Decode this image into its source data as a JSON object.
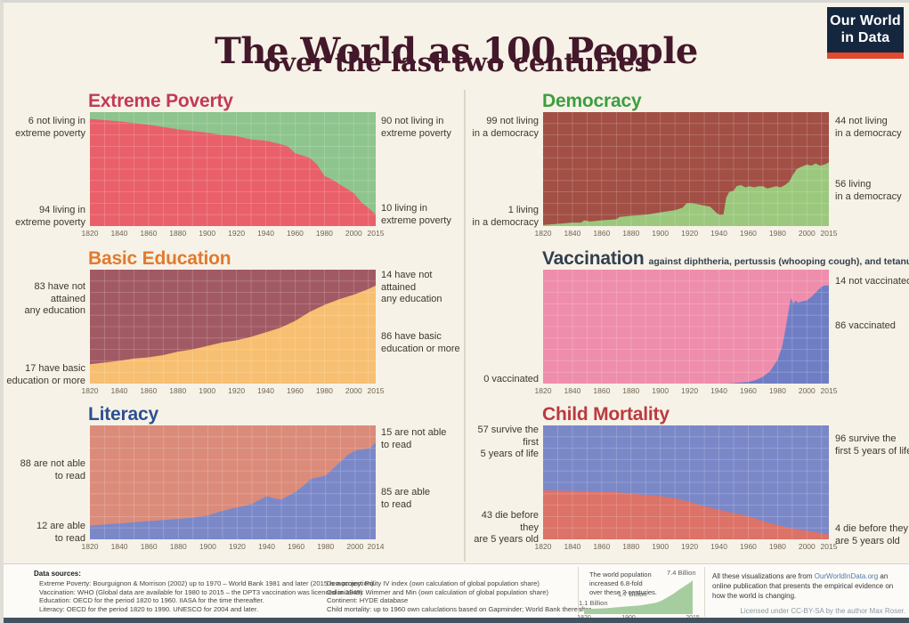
{
  "header": {
    "title": "The World as 100 People",
    "subtitle": "over the last two centuries",
    "logo": {
      "line1": "Our World",
      "line2": "in Data"
    }
  },
  "chart_data": [
    {
      "type": "area",
      "id": "extreme_poverty",
      "title": "Extreme Poverty",
      "subtitle": "",
      "title_color": "#c23a55",
      "bottom_color": "#e9606a",
      "top_color": "#8ec48e",
      "bottom_label": "living in extreme poverty",
      "top_label": "not living in extreme poverty",
      "labels": {
        "left_top": "6 not living in\nextreme poverty",
        "left_bottom": "94 living in\nextreme poverty",
        "right_top": "90 not living in\nextreme poverty",
        "right_bottom": "10 living in\nextreme poverty"
      },
      "x_range": [
        1820,
        2015
      ],
      "ylim": [
        0,
        100
      ],
      "x_ticks": [
        1820,
        1840,
        1860,
        1880,
        1900,
        1920,
        1940,
        1960,
        1980,
        2000,
        2015
      ],
      "points": [
        [
          1820,
          94
        ],
        [
          1840,
          92
        ],
        [
          1860,
          89
        ],
        [
          1880,
          85
        ],
        [
          1900,
          82
        ],
        [
          1910,
          80
        ],
        [
          1920,
          79
        ],
        [
          1930,
          76
        ],
        [
          1940,
          75
        ],
        [
          1950,
          72
        ],
        [
          1955,
          70
        ],
        [
          1960,
          64
        ],
        [
          1965,
          62
        ],
        [
          1970,
          60
        ],
        [
          1975,
          54
        ],
        [
          1980,
          44
        ],
        [
          1985,
          41
        ],
        [
          1990,
          37
        ],
        [
          1995,
          33
        ],
        [
          2000,
          29
        ],
        [
          2005,
          21
        ],
        [
          2010,
          16
        ],
        [
          2015,
          10
        ]
      ]
    },
    {
      "type": "area",
      "id": "democracy",
      "title": "Democracy",
      "subtitle": "",
      "title_color": "#3d9e40",
      "bottom_color": "#9bc87d",
      "top_color": "#a24f45",
      "bottom_label": "living in a democracy",
      "top_label": "not living in a democracy",
      "labels": {
        "left_top": "99 not living\nin a democracy",
        "left_bottom": "1 living\nin a democracy",
        "right_top": "44 not living\nin a democracy",
        "right_bottom": "56 living\nin a democracy"
      },
      "x_range": [
        1820,
        2015
      ],
      "ylim": [
        0,
        100
      ],
      "x_ticks": [
        1820,
        1840,
        1860,
        1880,
        1900,
        1920,
        1940,
        1960,
        1980,
        2000,
        2015
      ],
      "points": [
        [
          1820,
          1
        ],
        [
          1830,
          2
        ],
        [
          1840,
          3
        ],
        [
          1846,
          3
        ],
        [
          1848,
          5
        ],
        [
          1852,
          4
        ],
        [
          1860,
          5
        ],
        [
          1870,
          6
        ],
        [
          1872,
          8
        ],
        [
          1880,
          9
        ],
        [
          1890,
          10
        ],
        [
          1900,
          12
        ],
        [
          1910,
          14
        ],
        [
          1915,
          16
        ],
        [
          1918,
          20
        ],
        [
          1922,
          20
        ],
        [
          1926,
          19
        ],
        [
          1930,
          18
        ],
        [
          1934,
          17
        ],
        [
          1938,
          12
        ],
        [
          1940,
          10
        ],
        [
          1943,
          10
        ],
        [
          1945,
          25
        ],
        [
          1947,
          30
        ],
        [
          1950,
          31
        ],
        [
          1952,
          35
        ],
        [
          1955,
          36
        ],
        [
          1958,
          34
        ],
        [
          1961,
          35
        ],
        [
          1964,
          34
        ],
        [
          1967,
          35
        ],
        [
          1970,
          35
        ],
        [
          1973,
          33
        ],
        [
          1976,
          34
        ],
        [
          1979,
          35
        ],
        [
          1982,
          34
        ],
        [
          1985,
          36
        ],
        [
          1988,
          39
        ],
        [
          1990,
          44
        ],
        [
          1993,
          50
        ],
        [
          1996,
          52
        ],
        [
          2000,
          54
        ],
        [
          2003,
          53
        ],
        [
          2006,
          55
        ],
        [
          2009,
          53
        ],
        [
          2012,
          54
        ],
        [
          2015,
          56
        ]
      ]
    },
    {
      "type": "area",
      "id": "basic_education",
      "title": "Basic Education",
      "subtitle": "",
      "title_color": "#e17a2e",
      "bottom_color": "#f7bf71",
      "top_color": "#a15a63",
      "bottom_label": "have basic education or more",
      "top_label": "have not attained any education",
      "labels": {
        "left_top": "83 have not attained\nany education",
        "left_bottom": "17 have basic\neducation or more",
        "right_top": "14 have not attained\nany education",
        "right_bottom": "86 have basic\neducation or more"
      },
      "x_range": [
        1820,
        2015
      ],
      "ylim": [
        0,
        100
      ],
      "x_ticks": [
        1820,
        1840,
        1860,
        1880,
        1900,
        1920,
        1940,
        1960,
        1980,
        2000,
        2015
      ],
      "points": [
        [
          1820,
          17
        ],
        [
          1840,
          20
        ],
        [
          1850,
          22
        ],
        [
          1860,
          23
        ],
        [
          1870,
          25
        ],
        [
          1880,
          28
        ],
        [
          1890,
          30
        ],
        [
          1900,
          33
        ],
        [
          1910,
          36
        ],
        [
          1920,
          38
        ],
        [
          1930,
          41
        ],
        [
          1940,
          45
        ],
        [
          1950,
          49
        ],
        [
          1960,
          55
        ],
        [
          1970,
          63
        ],
        [
          1980,
          69
        ],
        [
          1990,
          74
        ],
        [
          2000,
          78
        ],
        [
          2010,
          83
        ],
        [
          2015,
          86
        ]
      ]
    },
    {
      "type": "area",
      "id": "vaccination",
      "title": "Vaccination",
      "subtitle": "against diphtheria, pertussis (whooping cough), and tetanus",
      "title_color": "#323f4e",
      "bottom_color": "#6f7ec4",
      "top_color": "#ef8dac",
      "bottom_label": "vaccinated",
      "top_label": "not vaccinated",
      "labels": {
        "left_bottom": "0 vaccinated",
        "right_top": "14 not vaccinated",
        "right_bottom": "86 vaccinated"
      },
      "x_range": [
        1820,
        2015
      ],
      "ylim": [
        0,
        100
      ],
      "x_ticks": [
        1820,
        1840,
        1860,
        1880,
        1900,
        1920,
        1940,
        1960,
        1980,
        2000,
        2015
      ],
      "points": [
        [
          1820,
          0
        ],
        [
          1945,
          0
        ],
        [
          1950,
          0.5
        ],
        [
          1955,
          1
        ],
        [
          1960,
          1.5
        ],
        [
          1965,
          3
        ],
        [
          1970,
          6
        ],
        [
          1975,
          11
        ],
        [
          1980,
          21
        ],
        [
          1983,
          32
        ],
        [
          1985,
          45
        ],
        [
          1987,
          60
        ],
        [
          1989,
          75
        ],
        [
          1991,
          70
        ],
        [
          1992,
          73
        ],
        [
          1994,
          71
        ],
        [
          1996,
          72
        ],
        [
          2000,
          73
        ],
        [
          2003,
          76
        ],
        [
          2006,
          80
        ],
        [
          2010,
          85
        ],
        [
          2012,
          86
        ],
        [
          2015,
          86
        ]
      ]
    },
    {
      "type": "area",
      "id": "literacy",
      "title": "Literacy",
      "subtitle": "",
      "title_color": "#2d4f92",
      "bottom_color": "#7b88c8",
      "top_color": "#db8b7a",
      "bottom_label": "able to read",
      "top_label": "not able to read",
      "labels": {
        "left_top": "88 are not able\nto read",
        "left_bottom": "12 are able\nto read",
        "right_top": "15 are not able\nto read",
        "right_bottom": "85 are able\nto read"
      },
      "x_range": [
        1820,
        2014
      ],
      "ylim": [
        0,
        100
      ],
      "x_ticks": [
        1820,
        1840,
        1860,
        1880,
        1900,
        1920,
        1940,
        1960,
        1980,
        2000,
        2014
      ],
      "points": [
        [
          1820,
          12
        ],
        [
          1840,
          14
        ],
        [
          1860,
          16
        ],
        [
          1880,
          18
        ],
        [
          1890,
          19
        ],
        [
          1900,
          21
        ],
        [
          1910,
          25
        ],
        [
          1920,
          28
        ],
        [
          1930,
          31
        ],
        [
          1940,
          38
        ],
        [
          1945,
          36
        ],
        [
          1950,
          35
        ],
        [
          1960,
          42
        ],
        [
          1965,
          47
        ],
        [
          1970,
          53
        ],
        [
          1980,
          56
        ],
        [
          1990,
          68
        ],
        [
          1995,
          74
        ],
        [
          2000,
          78
        ],
        [
          2005,
          79
        ],
        [
          2010,
          80
        ],
        [
          2014,
          85
        ]
      ]
    },
    {
      "type": "area",
      "id": "child_mortality",
      "title": "Child Mortality",
      "subtitle": "",
      "title_color": "#ba3a40",
      "bottom_color": "#dc7268",
      "top_color": "#7b88c8",
      "bottom_label": "die before they are 5 years old",
      "top_label": "survive the first 5 years of life",
      "labels": {
        "left_top": "57 survive the first\n5 years of life",
        "left_bottom": "43 die before they\nare 5 years old",
        "right_top": "96 survive the\nfirst 5 years of life",
        "right_bottom": "4 die before they\nare 5 years old"
      },
      "x_range": [
        1820,
        2015
      ],
      "ylim": [
        0,
        100
      ],
      "x_ticks": [
        1820,
        1840,
        1860,
        1880,
        1900,
        1920,
        1940,
        1960,
        1980,
        2000,
        2015
      ],
      "points": [
        [
          1820,
          43
        ],
        [
          1840,
          42.5
        ],
        [
          1860,
          42
        ],
        [
          1870,
          41.5
        ],
        [
          1880,
          40
        ],
        [
          1890,
          39
        ],
        [
          1900,
          38
        ],
        [
          1910,
          36
        ],
        [
          1920,
          33
        ],
        [
          1930,
          29
        ],
        [
          1940,
          26
        ],
        [
          1950,
          23
        ],
        [
          1960,
          20.5
        ],
        [
          1970,
          16
        ],
        [
          1980,
          12.5
        ],
        [
          1990,
          9.5
        ],
        [
          2000,
          7.5
        ],
        [
          2010,
          5.5
        ],
        [
          2015,
          4
        ]
      ]
    },
    {
      "type": "area",
      "id": "world_population",
      "title": "World population",
      "title_color": "#3f3f3f",
      "bottom_color": "#a6cd9f",
      "top_color": null,
      "grid": false,
      "y_max": 7.8,
      "x_range": [
        1820,
        2015
      ],
      "ylim": [
        0,
        7.8
      ],
      "x_ticks": [
        1820,
        1900,
        2015
      ],
      "points": [
        [
          1820,
          1.1
        ],
        [
          1840,
          1.2
        ],
        [
          1860,
          1.3
        ],
        [
          1880,
          1.5
        ],
        [
          1900,
          1.7
        ],
        [
          1920,
          1.9
        ],
        [
          1940,
          2.3
        ],
        [
          1950,
          2.5
        ],
        [
          1960,
          3.0
        ],
        [
          1970,
          3.7
        ],
        [
          1980,
          4.4
        ],
        [
          1990,
          5.3
        ],
        [
          2000,
          6.1
        ],
        [
          2010,
          6.9
        ],
        [
          2015,
          7.4
        ]
      ]
    }
  ],
  "footer": {
    "sources_heading": "Data sources:",
    "sources_left": [
      "Extreme Poverty: Bourguignon & Morrison (2002) up to 1970 – World Bank 1981 and later (2015 is a projection).",
      "Vaccination: WHO (Global data are available for 1980 to 2015 – the DPT3 vaccination was licenced in 1949)",
      "Education: OECD for the period 1820 to 1960. IIASA for the time thereafter.",
      "Literacy: OECD for the period 1820 to 1990. UNESCO for 2004 and later."
    ],
    "sources_right": [
      "Democracy: Polity IV index (own calculation of global population share)",
      "Colonialism: Wimmer and Min (own calculation of global population share)",
      "Continent: HYDE database",
      "Child mortality: up to 1960 own caluclations based on Gapminder; World Bank thereafter"
    ],
    "population": {
      "annotation": "The world population\nincreased 6.8-fold\nover these 2 centuries.",
      "label_1820": "1.1 Billion",
      "label_1900": "1.7 Billion",
      "label_2015": "7.4 Billion"
    },
    "about": {
      "pre": "All these visualizations are from ",
      "link": "OurWorldInData.org",
      "post": " an online publication that presents the empirical evidence on how the world is changing."
    },
    "license": "Licensed under CC-BY-SA by the author Max Roser."
  }
}
